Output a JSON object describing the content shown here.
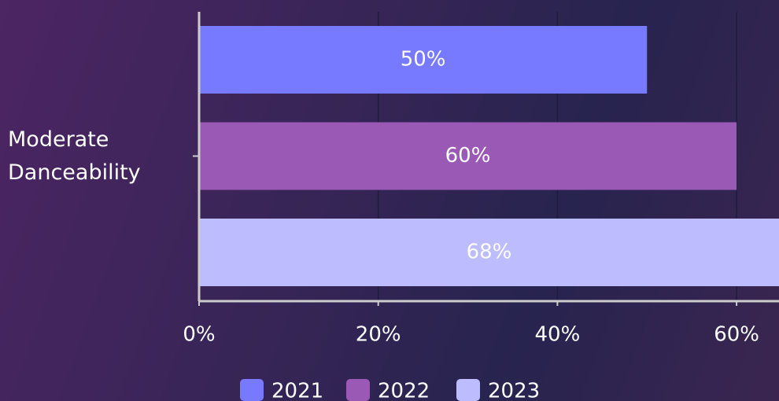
{
  "chart_data": {
    "type": "bar",
    "orientation": "horizontal",
    "categories": [
      "Moderate Danceability"
    ],
    "series": [
      {
        "name": "2021",
        "color": "#7779ff",
        "values": [
          50
        ],
        "value_labels": [
          "50%"
        ]
      },
      {
        "name": "2022",
        "color": "#9b59b6",
        "values": [
          60
        ],
        "value_labels": [
          "60%"
        ]
      },
      {
        "name": "2023",
        "color": "#bcbcff",
        "values": [
          68
        ],
        "value_labels": [
          "68%"
        ]
      }
    ],
    "xlim": [
      0,
      65
    ],
    "xticks": [
      {
        "value": 0,
        "label": "0%"
      },
      {
        "value": 20,
        "label": "20%"
      },
      {
        "value": 40,
        "label": "40%"
      },
      {
        "value": 60,
        "label": "60%"
      }
    ],
    "grid": true,
    "legend": "bottom"
  }
}
